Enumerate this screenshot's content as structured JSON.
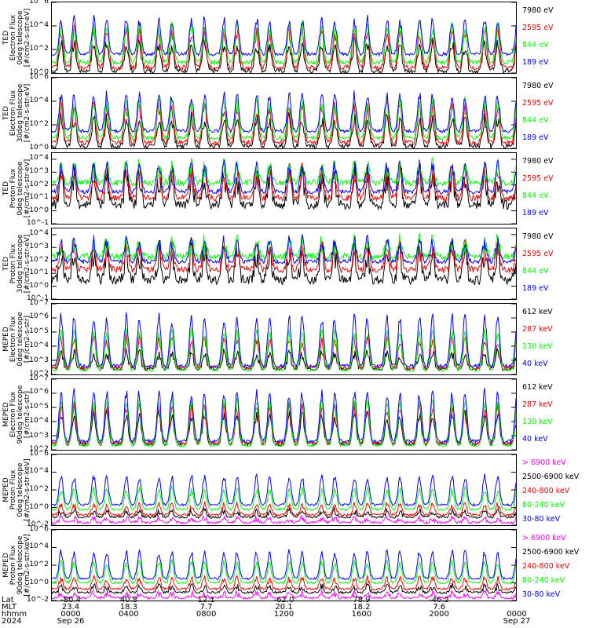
{
  "colors": {
    "black": "#000000",
    "red": "#ff0000",
    "green": "#00ff00",
    "blue": "#0000ff",
    "magenta": "#ff00ff"
  },
  "chart_data": [
    {
      "type": "line",
      "ylabel": [
        "TED",
        "Electron Flux",
        "0deg telescope",
        "[#/cm2-s-str-eV]"
      ],
      "yscale": "log",
      "ylim": [
        1,
        1000000
      ],
      "yticks": [
        {
          "v": 1,
          "label": "10^0"
        },
        {
          "v": 100,
          "label": "10^2"
        },
        {
          "v": 10000,
          "label": "10^4"
        },
        {
          "v": 1000000,
          "label": "10^6"
        }
      ],
      "series": [
        {
          "name": "7980 eV",
          "color": "black",
          "base": 1.5,
          "peak": 300,
          "noise": 0.5
        },
        {
          "name": "2595 eV",
          "color": "red",
          "base": 3,
          "peak": 3000,
          "noise": 0.5
        },
        {
          "name": "844 eV",
          "color": "green",
          "base": 8,
          "peak": 8000,
          "noise": 0.4
        },
        {
          "name": "189 eV",
          "color": "blue",
          "base": 40,
          "peak": 30000,
          "noise": 0.35
        }
      ]
    },
    {
      "type": "line",
      "ylabel": [
        "TED",
        "Electron Flux",
        "30deg telescope",
        "[#/cm2-s-str-eV]"
      ],
      "yscale": "log",
      "ylim": [
        1,
        1000000
      ],
      "yticks": [
        {
          "v": 1,
          "label": "10^0"
        },
        {
          "v": 100,
          "label": "10^2"
        },
        {
          "v": 10000,
          "label": "10^4"
        },
        {
          "v": 1000000,
          "label": "10^6"
        }
      ],
      "series": [
        {
          "name": "7980 eV",
          "color": "black",
          "base": 1.5,
          "peak": 300,
          "noise": 0.5
        },
        {
          "name": "2595 eV",
          "color": "red",
          "base": 3,
          "peak": 3000,
          "noise": 0.5
        },
        {
          "name": "844 eV",
          "color": "green",
          "base": 8,
          "peak": 8000,
          "noise": 0.4
        },
        {
          "name": "189 eV",
          "color": "blue",
          "base": 30,
          "peak": 30000,
          "noise": 0.35
        }
      ]
    },
    {
      "type": "line",
      "ylabel": [
        "TED",
        "Proton Flux",
        "0deg telescope",
        "[#/cm2-s-str-eV]"
      ],
      "yscale": "log",
      "ylim": [
        0.1,
        30000
      ],
      "yticks": [
        {
          "v": 0.1,
          "label": "10^-1"
        },
        {
          "v": 1,
          "label": "10^0"
        },
        {
          "v": 10,
          "label": "10^1"
        },
        {
          "v": 100,
          "label": "10^2"
        },
        {
          "v": 1000,
          "label": "10^3"
        },
        {
          "v": 10000,
          "label": "10^4"
        }
      ],
      "series": [
        {
          "name": "7980 eV",
          "color": "black",
          "base": 3,
          "peak": 400,
          "noise": 0.9
        },
        {
          "name": "2595 eV",
          "color": "red",
          "base": 10,
          "peak": 800,
          "noise": 0.6
        },
        {
          "name": "844 eV",
          "color": "green",
          "base": 150,
          "peak": 2000,
          "noise": 0.6
        },
        {
          "name": "189 eV",
          "color": "blue",
          "base": 30,
          "peak": 3000,
          "noise": 0.4
        }
      ]
    },
    {
      "type": "line",
      "ylabel": [
        "TED",
        "Proton Flux",
        "30deg telescope",
        "[#/cm2-s-str-eV]"
      ],
      "yscale": "log",
      "ylim": [
        0.1,
        30000
      ],
      "yticks": [
        {
          "v": 0.1,
          "label": "10^-1"
        },
        {
          "v": 1,
          "label": "10^0"
        },
        {
          "v": 10,
          "label": "10^1"
        },
        {
          "v": 100,
          "label": "10^2"
        },
        {
          "v": 1000,
          "label": "10^3"
        },
        {
          "v": 10000,
          "label": "10^4"
        }
      ],
      "series": [
        {
          "name": "7980 eV",
          "color": "black",
          "base": 3,
          "peak": 400,
          "noise": 0.9
        },
        {
          "name": "2595 eV",
          "color": "red",
          "base": 20,
          "peak": 800,
          "noise": 0.6
        },
        {
          "name": "844 eV",
          "color": "green",
          "base": 200,
          "peak": 2000,
          "noise": 0.6
        },
        {
          "name": "189 eV",
          "color": "blue",
          "base": 80,
          "peak": 3000,
          "noise": 0.4
        }
      ]
    },
    {
      "type": "line",
      "ylabel": [
        "MEPED",
        "Electron Flux",
        "0deg telescope",
        "[#/cm2-s-str]"
      ],
      "yscale": "log",
      "ylim": [
        100,
        10000000
      ],
      "yticks": [
        {
          "v": 100,
          "label": "10^2"
        },
        {
          "v": 1000,
          "label": "10^3"
        },
        {
          "v": 10000,
          "label": "10^4"
        },
        {
          "v": 100000,
          "label": "10^5"
        },
        {
          "v": 1000000,
          "label": "10^6"
        },
        {
          "v": 10000000,
          "label": "10^7"
        }
      ],
      "series": [
        {
          "name": "612 keV",
          "color": "black",
          "base": 250,
          "peak": 3000,
          "noise": 0.3
        },
        {
          "name": "287 keV",
          "color": "red",
          "base": 300,
          "peak": 30000,
          "noise": 0.3
        },
        {
          "name": "130 keV",
          "color": "green",
          "base": 200,
          "peak": 100000,
          "noise": 0.2
        },
        {
          "name": "40 keV",
          "color": "blue",
          "base": 400,
          "peak": 1000000,
          "noise": 0.3
        }
      ]
    },
    {
      "type": "line",
      "ylabel": [
        "MEPED",
        "Electron Flux",
        "90deg telescope",
        "[#/cm2-s-str]"
      ],
      "yscale": "log",
      "ylim": [
        100,
        10000000
      ],
      "yticks": [
        {
          "v": 100,
          "label": "10^2"
        },
        {
          "v": 1000,
          "label": "10^3"
        },
        {
          "v": 10000,
          "label": "10^4"
        },
        {
          "v": 100000,
          "label": "10^5"
        },
        {
          "v": 1000000,
          "label": "10^6"
        },
        {
          "v": 10000000,
          "label": "10^7"
        }
      ],
      "series": [
        {
          "name": "612 keV",
          "color": "black",
          "base": 250,
          "peak": 30000,
          "noise": 0.3
        },
        {
          "name": "287 keV",
          "color": "red",
          "base": 300,
          "peak": 100000,
          "noise": 0.3
        },
        {
          "name": "130 keV",
          "color": "green",
          "base": 200,
          "peak": 300000,
          "noise": 0.2
        },
        {
          "name": "40 keV",
          "color": "blue",
          "base": 400,
          "peak": 1000000,
          "noise": 0.3
        }
      ]
    },
    {
      "type": "line",
      "ylabel": [
        "MEPED",
        "Proton Flux",
        "0deg telescope",
        "[#/cm2-s-str-keV]"
      ],
      "yscale": "log",
      "ylim": [
        0.01,
        1000000
      ],
      "yticks": [
        {
          "v": 0.01,
          "label": "10^-2"
        },
        {
          "v": 1,
          "label": "10^0"
        },
        {
          "v": 100,
          "label": "10^2"
        },
        {
          "v": 10000,
          "label": "10^4"
        },
        {
          "v": 1000000,
          "label": "10^6"
        }
      ],
      "series": [
        {
          "name": "> 6900 keV",
          "color": "magenta",
          "base": 0.02,
          "peak": 0.06,
          "noise": 0.3
        },
        {
          "name": "2500-6900 keV",
          "color": "black",
          "base": 0.08,
          "peak": 0.4,
          "noise": 0.3
        },
        {
          "name": "240-800 keV",
          "color": "red",
          "base": 0.15,
          "peak": 2,
          "noise": 0.3
        },
        {
          "name": "80-240 keV",
          "color": "green",
          "base": 0.6,
          "peak": 100,
          "noise": 0.3
        },
        {
          "name": "30-80 keV",
          "color": "blue",
          "base": 2,
          "peak": 3000,
          "noise": 0.3
        }
      ]
    },
    {
      "type": "line",
      "ylabel": [
        "MEPED",
        "Proton Flux",
        "90deg telescope",
        "[#/cm2-s-str-keV]"
      ],
      "yscale": "log",
      "ylim": [
        0.01,
        1000000
      ],
      "yticks": [
        {
          "v": 0.01,
          "label": "10^-2"
        },
        {
          "v": 1,
          "label": "10^0"
        },
        {
          "v": 100,
          "label": "10^2"
        },
        {
          "v": 10000,
          "label": "10^4"
        },
        {
          "v": 1000000,
          "label": "10^6"
        }
      ],
      "series": [
        {
          "name": "> 6900 keV",
          "color": "magenta",
          "base": 0.02,
          "peak": 0.06,
          "noise": 0.3
        },
        {
          "name": "2500-6900 keV",
          "color": "black",
          "base": 0.08,
          "peak": 0.4,
          "noise": 0.3
        },
        {
          "name": "240-800 keV",
          "color": "red",
          "base": 0.2,
          "peak": 3,
          "noise": 0.3
        },
        {
          "name": "80-240 keV",
          "color": "green",
          "base": 1,
          "peak": 200,
          "noise": 0.3
        },
        {
          "name": "30-80 keV",
          "color": "blue",
          "base": 3,
          "peak": 3000,
          "noise": 0.3
        }
      ]
    }
  ],
  "footer": {
    "row_labels": [
      "Lat",
      "MLT",
      "hhmm",
      "2024"
    ],
    "columns": [
      {
        "t": 0.0,
        "lat": "-80.4",
        "mlt": "23.4",
        "hhmm": "0000",
        "date": "Sep 26"
      },
      {
        "t": 0.1667,
        "lat": "40.8",
        "mlt": "18.3",
        "hhmm": "0400",
        "date": ""
      },
      {
        "t": 0.3333,
        "lat": "12.1",
        "mlt": "7.7",
        "hhmm": "0800",
        "date": ""
      },
      {
        "t": 0.5,
        "lat": "-62.0",
        "mlt": "20.1",
        "hhmm": "1200",
        "date": ""
      },
      {
        "t": 0.6667,
        "lat": "78.9",
        "mlt": "18.2",
        "hhmm": "1600",
        "date": ""
      },
      {
        "t": 0.8333,
        "lat": "-46.2",
        "mlt": "7.6",
        "hhmm": "2000",
        "date": ""
      },
      {
        "t": 1.0,
        "lat": "",
        "mlt": "",
        "hhmm": "0000",
        "date": "Sep 27"
      }
    ]
  }
}
